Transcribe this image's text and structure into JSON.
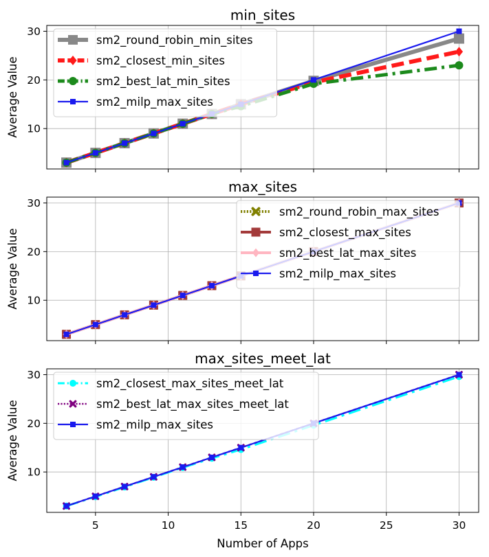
{
  "chart_data": [
    {
      "type": "line",
      "title": "min_sites",
      "ylabel": "Average Value",
      "xlabel": "",
      "xlim": [
        1.65,
        31.35
      ],
      "ylim": [
        1.7,
        31.2
      ],
      "xticks": [
        5,
        10,
        15,
        20,
        25,
        30
      ],
      "yticks": [
        10,
        20,
        30
      ],
      "ytick_labels": [
        "10",
        "20",
        "30"
      ],
      "legend": "upper-left",
      "grid": true,
      "x": [
        3,
        5,
        7,
        9,
        11,
        13,
        15,
        20,
        30
      ],
      "series": [
        {
          "name": "sm2_round_robin_min_sites",
          "color": "#888888",
          "style": "solid",
          "width": 6,
          "marker": "square",
          "marker_size": 15,
          "values": [
            3,
            5,
            7,
            9,
            11,
            13,
            15,
            19.8,
            28.5
          ]
        },
        {
          "name": "sm2_closest_min_sites",
          "color": "#ff1a1a",
          "style": "dashed",
          "width": 6,
          "marker": "diamond",
          "marker_size": 14,
          "values": [
            3,
            5,
            7,
            9,
            11,
            13,
            15,
            19.5,
            25.8
          ]
        },
        {
          "name": "sm2_best_lat_min_sites",
          "color": "#1c8a1c",
          "style": "dashdot",
          "width": 5,
          "marker": "circle",
          "marker_size": 12,
          "values": [
            3,
            5,
            7,
            9,
            11,
            13,
            14.6,
            19.2,
            23
          ]
        },
        {
          "name": "sm2_milp_max_sites",
          "color": "#1a1aee",
          "style": "solid",
          "width": 2.2,
          "marker": "square",
          "marker_size": 8,
          "values": [
            3,
            5,
            7,
            9,
            11,
            13,
            15,
            20,
            30
          ]
        }
      ]
    },
    {
      "type": "line",
      "title": "max_sites",
      "ylabel": "Average Value",
      "xlabel": "",
      "xlim": [
        1.65,
        31.35
      ],
      "ylim": [
        1.7,
        31.2
      ],
      "xticks": [
        5,
        10,
        15,
        20,
        25,
        30
      ],
      "yticks": [
        10,
        20,
        30
      ],
      "ytick_labels": [
        "10",
        "20",
        "30"
      ],
      "legend": "upper-right",
      "grid": true,
      "x": [
        3,
        5,
        7,
        9,
        11,
        13,
        15,
        20,
        30
      ],
      "series": [
        {
          "name": "sm2_round_robin_max_sites",
          "color": "#808000",
          "style": "dotted",
          "width": 4,
          "marker": "x",
          "marker_size": 12,
          "values": [
            3,
            5,
            7,
            9,
            11,
            13,
            15,
            20,
            30
          ]
        },
        {
          "name": "sm2_closest_max_sites",
          "color": "#a33a3a",
          "style": "solid",
          "width": 4,
          "marker": "square",
          "marker_size": 13,
          "values": [
            3,
            5,
            7,
            9,
            11,
            13,
            15,
            20,
            30
          ]
        },
        {
          "name": "sm2_best_lat_max_sites",
          "color": "#ffb6c1",
          "style": "solid",
          "width": 4,
          "marker": "diamond",
          "marker_size": 13,
          "values": [
            3,
            5,
            7,
            9,
            11,
            13,
            15,
            20,
            30
          ]
        },
        {
          "name": "sm2_milp_max_sites",
          "color": "#1a1aee",
          "style": "solid",
          "width": 2.2,
          "marker": "square",
          "marker_size": 8,
          "values": [
            3,
            5,
            7,
            9,
            11,
            13,
            15,
            20,
            30
          ]
        }
      ]
    },
    {
      "type": "line",
      "title": "max_sites_meet_lat",
      "ylabel": "Average Value",
      "xlabel": "Number of Apps",
      "xlim": [
        1.65,
        31.35
      ],
      "ylim": [
        1.7,
        31.2
      ],
      "xticks": [
        5,
        10,
        15,
        20,
        25,
        30
      ],
      "xtick_labels": [
        "5",
        "10",
        "15",
        "20",
        "25",
        "30"
      ],
      "yticks": [
        10,
        20,
        30
      ],
      "ytick_labels": [
        "10",
        "20",
        "30"
      ],
      "legend": "upper-left",
      "grid": true,
      "x": [
        3,
        5,
        7,
        9,
        11,
        13,
        15,
        20,
        30
      ],
      "series": [
        {
          "name": "sm2_closest_max_sites_meet_lat",
          "color": "#00ffff",
          "style": "dashdot",
          "width": 3,
          "marker": "circle",
          "marker_size": 10,
          "values": [
            3,
            4.9,
            6.9,
            8.9,
            10.9,
            12.8,
            14.6,
            19.6,
            29.6
          ]
        },
        {
          "name": "sm2_best_lat_max_sites_meet_lat",
          "color": "#800080",
          "style": "dotted",
          "width": 2.5,
          "marker": "x",
          "marker_size": 10,
          "values": [
            3,
            5,
            7,
            9,
            11,
            13,
            15,
            20,
            30
          ]
        },
        {
          "name": "sm2_milp_max_sites",
          "color": "#1a1aee",
          "style": "solid",
          "width": 2.2,
          "marker": "square",
          "marker_size": 8,
          "values": [
            3,
            5,
            7,
            9,
            11,
            13,
            15,
            20,
            30
          ]
        }
      ]
    }
  ]
}
